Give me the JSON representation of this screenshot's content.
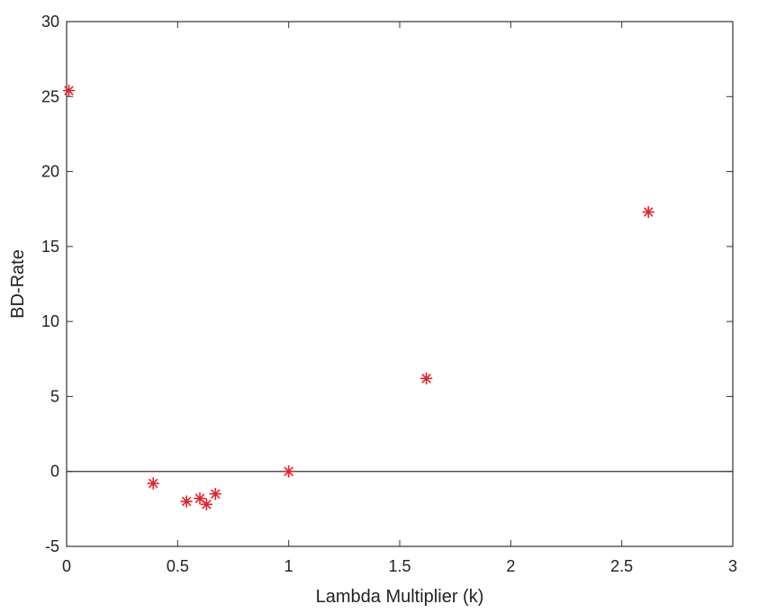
{
  "chart_data": {
    "type": "scatter",
    "title": "",
    "xlabel": "Lambda Multiplier (k)",
    "ylabel": "BD-Rate",
    "xlim": [
      0,
      3
    ],
    "ylim": [
      -5,
      30
    ],
    "x_ticks": [
      0,
      0.5,
      1,
      1.5,
      2,
      2.5,
      3
    ],
    "x_tick_labels": [
      "0",
      "0.5",
      "1",
      "1.5",
      "2",
      "2.5",
      "3"
    ],
    "y_ticks": [
      -5,
      0,
      5,
      10,
      15,
      20,
      25,
      30
    ],
    "y_tick_labels": [
      "-5",
      "0",
      "5",
      "10",
      "15",
      "20",
      "25",
      "30"
    ],
    "grid": false,
    "reference_line_y": 0,
    "series": [
      {
        "marker": "asterisk",
        "color": "#e8202a",
        "points": [
          {
            "x": 0.01,
            "y": 25.4
          },
          {
            "x": 0.39,
            "y": -0.8
          },
          {
            "x": 0.54,
            "y": -2.0
          },
          {
            "x": 0.6,
            "y": -1.8
          },
          {
            "x": 0.63,
            "y": -2.2
          },
          {
            "x": 0.67,
            "y": -1.5
          },
          {
            "x": 1.0,
            "y": 0.0
          },
          {
            "x": 1.62,
            "y": 6.2
          },
          {
            "x": 2.62,
            "y": 17.3
          }
        ]
      }
    ]
  }
}
